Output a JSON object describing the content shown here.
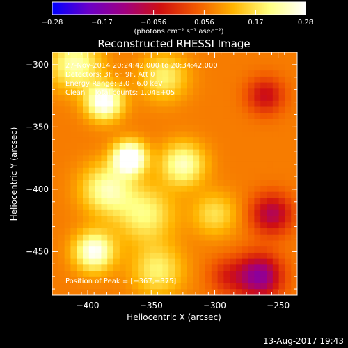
{
  "chart_data": {
    "type": "heatmap",
    "title": "Reconstructed RHESSI Image",
    "xlabel": "Heliocentric X (arcsec)",
    "ylabel": "Heliocentric Y (arcsec)",
    "xlim": [
      -428,
      -235
    ],
    "ylim": [
      -485,
      -290
    ],
    "x_ticks": [
      {
        "value": -400,
        "label": "−400"
      },
      {
        "value": -350,
        "label": "−350"
      },
      {
        "value": -300,
        "label": "−300"
      },
      {
        "value": -250,
        "label": "−250"
      }
    ],
    "y_ticks": [
      {
        "value": -300,
        "label": "−300"
      },
      {
        "value": -350,
        "label": "−350"
      },
      {
        "value": -400,
        "label": "−400"
      },
      {
        "value": -450,
        "label": "−450"
      }
    ],
    "colorbar": {
      "min": -0.28,
      "max": 0.28,
      "units": "(photons cm⁻² s⁻¹ asec⁻²)",
      "ticks": [
        {
          "value": -0.28,
          "label": "−0.28"
        },
        {
          "value": -0.17,
          "label": "−0.17"
        },
        {
          "value": -0.056,
          "label": "−0.056"
        },
        {
          "value": 0.056,
          "label": "0.056"
        },
        {
          "value": 0.17,
          "label": "0.17"
        },
        {
          "value": 0.28,
          "label": "0.28"
        }
      ],
      "colormap": [
        "#0000ff",
        "#6a00c8",
        "#a00080",
        "#d01010",
        "#f25a00",
        "#ffb400",
        "#ffff80",
        "#ffffff"
      ]
    },
    "annotations": [
      "27-Nov-2014 20:24:42.000 to 20:34:42.000",
      "Detectors: 3F 6F 9F, Att 0",
      "Energy Range: 3.0 - 6.0 keV",
      "Clean    Total counts: 1.04E+05"
    ],
    "peak_label": "Position of Peak = [−367,−375]",
    "peak": {
      "x": -367,
      "y": -375
    },
    "sources": [
      {
        "x": -367,
        "y": -375,
        "sigma": 9,
        "amp": 0.28
      },
      {
        "x": -387,
        "y": -330,
        "sigma": 10,
        "amp": 0.23
      },
      {
        "x": -395,
        "y": -450,
        "sigma": 11,
        "amp": 0.21
      },
      {
        "x": -325,
        "y": -380,
        "sigma": 12,
        "amp": 0.17
      },
      {
        "x": -355,
        "y": -420,
        "sigma": 16,
        "amp": 0.13
      },
      {
        "x": -410,
        "y": -300,
        "sigma": 14,
        "amp": 0.16
      },
      {
        "x": -340,
        "y": -310,
        "sigma": 13,
        "amp": 0.12
      },
      {
        "x": -385,
        "y": -400,
        "sigma": 14,
        "amp": 0.16
      },
      {
        "x": -345,
        "y": -465,
        "sigma": 14,
        "amp": 0.12
      },
      {
        "x": -300,
        "y": -420,
        "sigma": 12,
        "amp": 0.1
      },
      {
        "x": -260,
        "y": -325,
        "sigma": 10,
        "amp": -0.12
      },
      {
        "x": -255,
        "y": -420,
        "sigma": 11,
        "amp": -0.16
      },
      {
        "x": -265,
        "y": -470,
        "sigma": 12,
        "amp": -0.22
      },
      {
        "x": -290,
        "y": -470,
        "sigma": 10,
        "amp": -0.08
      }
    ],
    "background": 0.07
  },
  "footer": {
    "date": "13-Aug-2017 19:43"
  }
}
